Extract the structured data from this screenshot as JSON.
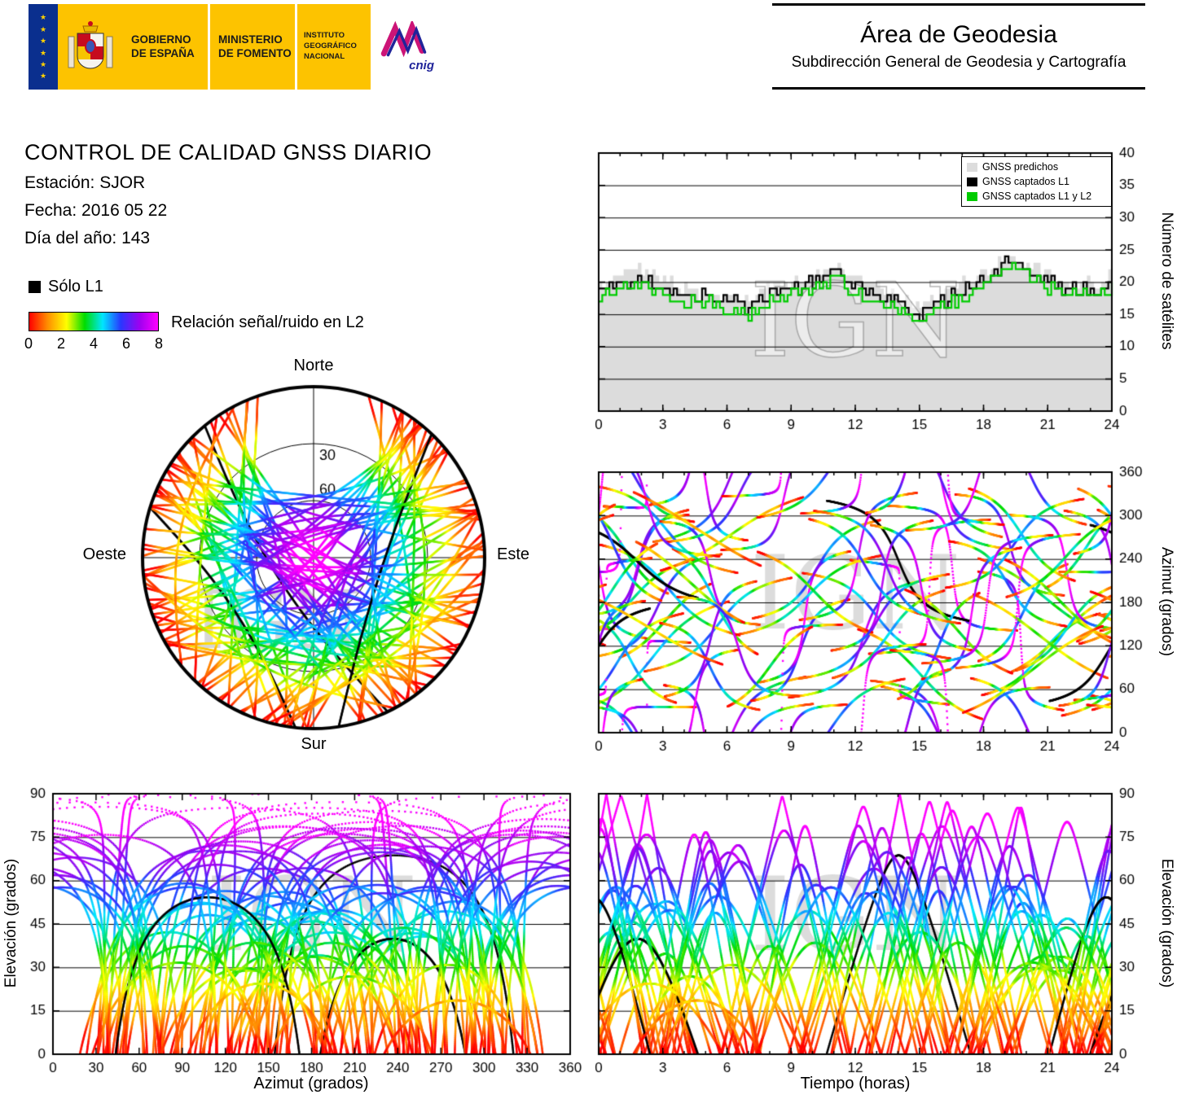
{
  "watermark": "IGN",
  "header": {
    "gobierno_line1": "GOBIERNO",
    "gobierno_line2": "DE ESPAÑA",
    "ministerio_line1": "MINISTERIO",
    "ministerio_line2": "DE FOMENTO",
    "ign_line1": "INSTITUTO",
    "ign_line2": "GEOGRÁFICO",
    "ign_line3": "NACIONAL",
    "cnig": "cnig",
    "area_title": "Área de Geodesia",
    "area_subtitle": "Subdirección General de Geodesia y Cartografía"
  },
  "report": {
    "title": "CONTROL DE CALIDAD GNSS DIARIO",
    "station_label": "Estación: SJOR",
    "date_label": "Fecha: 2016 05 22",
    "doy_label": "Día del año: 143"
  },
  "legend": {
    "l1_only": "Sólo L1",
    "l1_only_color": "#000000",
    "colorbar_label": "Relación señal/ruido en L2",
    "colorbar_ticks": [
      "0",
      "2",
      "4",
      "6",
      "8"
    ],
    "colorbar_colors": [
      "#ff0000",
      "#ff8c00",
      "#ffff00",
      "#00dc00",
      "#00e6ff",
      "#2838ff",
      "#a000f0",
      "#ff00ff"
    ]
  },
  "chart_data": [
    {
      "id": "skyplot",
      "type": "skyplot",
      "directions": {
        "north": "Norte",
        "south": "Sur",
        "east": "Este",
        "west": "Oeste"
      },
      "elevation_rings": [
        30,
        60
      ],
      "description": "Polar sky plot of GNSS satellite tracks above station SJOR. Track color encodes L2 signal-to-noise ratio from red (0, low) to magenta (8, high); black tracks are L1-only. The empty circular region toward north is the GPS visibility hole."
    },
    {
      "id": "satellites_per_hour",
      "type": "step-line",
      "xlabel": "",
      "ylabel": "Número de satélites",
      "xlim": [
        0,
        24
      ],
      "ylim": [
        0,
        40
      ],
      "xticks": [
        0,
        3,
        6,
        9,
        12,
        15,
        18,
        21,
        24
      ],
      "yticks": [
        0,
        5,
        10,
        15,
        20,
        25,
        30,
        35,
        40
      ],
      "x_hours": [
        0,
        1,
        2,
        3,
        4,
        5,
        6,
        7,
        8,
        9,
        10,
        11,
        12,
        13,
        14,
        15,
        16,
        17,
        18,
        19,
        20,
        21,
        22,
        23,
        24
      ],
      "series": [
        {
          "label": "GNSS predichos",
          "color": "#dcdcdc",
          "style": "filled-area",
          "hourly": [
            20,
            21,
            22,
            20,
            19,
            18,
            18,
            17,
            19,
            20,
            21,
            23,
            20,
            19,
            18,
            16,
            18,
            20,
            21,
            24,
            23,
            21,
            20,
            20,
            21
          ]
        },
        {
          "label": "GNSS captados L1",
          "color": "#000000",
          "style": "step-line",
          "hourly": [
            19,
            20,
            21,
            19,
            18,
            18,
            17,
            16,
            18,
            19,
            20,
            22,
            19,
            18,
            17,
            15,
            17,
            19,
            20,
            23,
            22,
            20,
            19,
            19,
            20
          ]
        },
        {
          "label": "GNSS captados L1 y L2",
          "color": "#00cc00",
          "style": "step-line",
          "hourly": [
            18,
            19,
            20,
            18,
            17,
            17,
            16,
            15,
            17,
            18,
            19,
            21,
            18,
            17,
            16,
            14,
            16,
            18,
            19,
            22,
            21,
            19,
            18,
            18,
            19
          ]
        }
      ]
    },
    {
      "id": "azimuth_vs_time",
      "type": "scatter-tracks",
      "xlabel": "",
      "ylabel": "Azimut (grados)",
      "xlim": [
        0,
        24
      ],
      "ylim": [
        0,
        360
      ],
      "xticks": [
        0,
        3,
        6,
        9,
        12,
        15,
        18,
        21,
        24
      ],
      "yticks": [
        0,
        60,
        120,
        180,
        240,
        300,
        360
      ],
      "description": "Azimuth of every GNSS satellite track through the day, colored by L2 SNR (black = L1 only)."
    },
    {
      "id": "elevation_vs_azimuth",
      "type": "scatter-tracks",
      "xlabel": "Azimut (grados)",
      "ylabel": "Elevación (grados)",
      "xlim": [
        0,
        360
      ],
      "ylim": [
        0,
        90
      ],
      "xticks": [
        0,
        30,
        60,
        90,
        120,
        150,
        180,
        210,
        240,
        270,
        300,
        330,
        360
      ],
      "yticks": [
        0,
        15,
        30,
        45,
        60,
        75,
        90
      ],
      "description": "Elevation versus azimuth of GNSS satellite tracks, colored by L2 SNR (black = L1 only)."
    },
    {
      "id": "elevation_vs_time",
      "type": "scatter-tracks",
      "xlabel": "Tiempo (horas)",
      "ylabel": "Elevación (grados)",
      "xlim": [
        0,
        24
      ],
      "ylim": [
        0,
        90
      ],
      "xticks": [
        0,
        3,
        6,
        9,
        12,
        15,
        18,
        21,
        24
      ],
      "yticks": [
        0,
        15,
        30,
        45,
        60,
        75,
        90
      ],
      "description": "Elevation versus time of GNSS satellite tracks, colored by L2 SNR (black = L1 only)."
    }
  ]
}
